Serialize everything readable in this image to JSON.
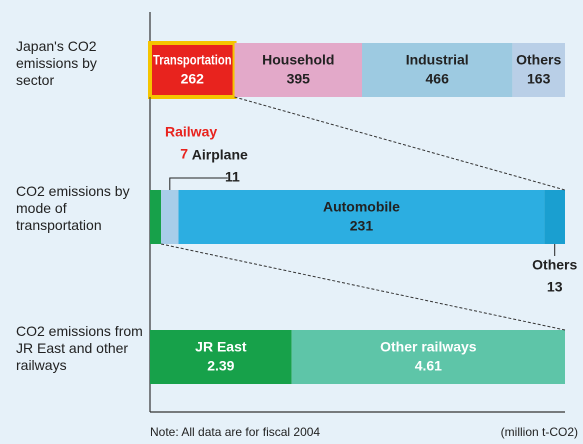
{
  "chart_data": [
    {
      "type": "bar",
      "stacked": true,
      "orientation": "horizontal",
      "title": "Japan's CO2 emissions by sector",
      "categories": [
        "Transportation",
        "Household",
        "Industrial",
        "Others"
      ],
      "values": [
        262,
        395,
        466,
        163
      ],
      "colors": [
        "#e8231e",
        "#e3a9c9",
        "#9dcae1",
        "#b9cfe7"
      ],
      "text_colors": [
        "#ffffff",
        "#222222",
        "#222222",
        "#222222"
      ]
    },
    {
      "type": "bar",
      "stacked": true,
      "orientation": "horizontal",
      "title": "CO2 emissions by mode of transportation",
      "categories": [
        "Railway",
        "Airplane",
        "Automobile",
        "Others"
      ],
      "values": [
        7,
        11,
        231,
        13
      ],
      "colors": [
        "#17a14a",
        "#a8cde9",
        "#2caee1",
        "#1a9fd0"
      ],
      "text_colors": [
        "#e8231e",
        "#222222",
        "#222222",
        "#222222"
      ]
    },
    {
      "type": "bar",
      "stacked": true,
      "orientation": "horizontal",
      "title": "CO2 emissions from JR East and other railways",
      "categories": [
        "JR East",
        "Other railways"
      ],
      "values": [
        2.39,
        4.61
      ],
      "colors": [
        "#17a14a",
        "#5ec5a8"
      ],
      "text_colors": [
        "#ffffff",
        "#ffffff"
      ]
    }
  ],
  "note": "Note: All data are for fiscal 2004",
  "unit": "(million t-CO2)"
}
